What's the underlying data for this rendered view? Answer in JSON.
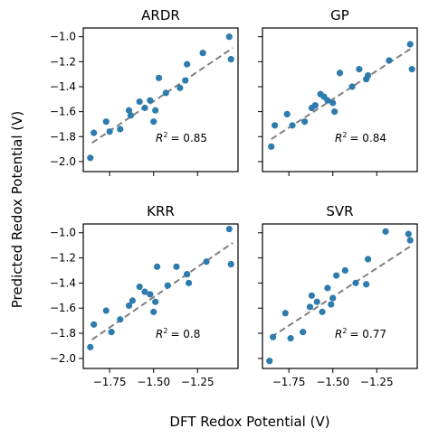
{
  "figure": {
    "xlabel": "DFT Redox Potential (V)",
    "ylabel": "Predicted Redox Potential (V)"
  },
  "chart_data": [
    {
      "type": "scatter",
      "title": "ARDR",
      "r2_label": "= 0.85",
      "fit": {
        "x": [
          -1.85,
          -1.05
        ],
        "y": [
          -1.85,
          -1.09
        ]
      },
      "x": [
        -1.86,
        -1.84,
        -1.77,
        -1.75,
        -1.69,
        -1.64,
        -1.63,
        -1.58,
        -1.55,
        -1.52,
        -1.5,
        -1.49,
        -1.47,
        -1.43,
        -1.35,
        -1.32,
        -1.31,
        -1.22,
        -1.07,
        -1.06
      ],
      "y": [
        -1.97,
        -1.77,
        -1.68,
        -1.76,
        -1.74,
        -1.59,
        -1.63,
        -1.52,
        -1.57,
        -1.51,
        -1.68,
        -1.59,
        -1.33,
        -1.45,
        -1.41,
        -1.35,
        -1.22,
        -1.13,
        -1.0,
        -1.18
      ]
    },
    {
      "type": "scatter",
      "title": "GP",
      "r2_label": "= 0.84",
      "fit": {
        "x": [
          -1.85,
          -1.05
        ],
        "y": [
          -1.82,
          -1.09
        ]
      },
      "x": [
        -1.85,
        -1.83,
        -1.76,
        -1.73,
        -1.66,
        -1.62,
        -1.6,
        -1.57,
        -1.55,
        -1.53,
        -1.5,
        -1.49,
        -1.46,
        -1.39,
        -1.35,
        -1.31,
        -1.3,
        -1.18,
        -1.06,
        -1.05
      ],
      "y": [
        -1.88,
        -1.71,
        -1.62,
        -1.71,
        -1.68,
        -1.57,
        -1.55,
        -1.46,
        -1.48,
        -1.51,
        -1.53,
        -1.6,
        -1.29,
        -1.4,
        -1.26,
        -1.34,
        -1.31,
        -1.19,
        -1.06,
        -1.26
      ]
    },
    {
      "type": "scatter",
      "title": "KRR",
      "r2_label": "= 0.8",
      "fit": {
        "x": [
          -1.85,
          -1.05
        ],
        "y": [
          -1.85,
          -1.08
        ]
      },
      "x": [
        -1.86,
        -1.84,
        -1.77,
        -1.74,
        -1.69,
        -1.64,
        -1.62,
        -1.58,
        -1.55,
        -1.52,
        -1.5,
        -1.49,
        -1.48,
        -1.42,
        -1.37,
        -1.31,
        -1.3,
        -1.2,
        -1.07,
        -1.06
      ],
      "y": [
        -1.91,
        -1.73,
        -1.62,
        -1.79,
        -1.69,
        -1.58,
        -1.54,
        -1.43,
        -1.47,
        -1.49,
        -1.63,
        -1.55,
        -1.27,
        -1.42,
        -1.27,
        -1.33,
        -1.4,
        -1.23,
        -0.97,
        -1.25
      ]
    },
    {
      "type": "scatter",
      "title": "SVR",
      "r2_label": "= 0.77",
      "fit": {
        "x": [
          -1.85,
          -1.05
        ],
        "y": [
          -1.83,
          -1.1
        ]
      },
      "x": [
        -1.86,
        -1.84,
        -1.77,
        -1.74,
        -1.67,
        -1.63,
        -1.62,
        -1.59,
        -1.56,
        -1.53,
        -1.51,
        -1.5,
        -1.48,
        -1.43,
        -1.37,
        -1.31,
        -1.3,
        -1.2,
        -1.07,
        -1.06
      ],
      "y": [
        -2.02,
        -1.83,
        -1.64,
        -1.84,
        -1.79,
        -1.59,
        -1.5,
        -1.55,
        -1.63,
        -1.44,
        -1.57,
        -1.52,
        -1.34,
        -1.3,
        -1.4,
        -1.41,
        -1.21,
        -0.99,
        -1.01,
        -1.06
      ]
    }
  ],
  "axes": {
    "xlim": [
      -1.9,
      -1.02
    ],
    "ylim": [
      -2.08,
      -0.93
    ],
    "xticks": [
      -1.75,
      -1.5,
      -1.25
    ],
    "xtick_labels": [
      "−1.75",
      "−1.50",
      "−1.25"
    ],
    "yticks": [
      -1.0,
      -1.2,
      -1.4,
      -1.6,
      -1.8,
      -2.0
    ],
    "ytick_labels": [
      "−1.0",
      "−1.2",
      "−1.4",
      "−1.6",
      "−1.8",
      "−2.0"
    ],
    "r2_symbol": "R",
    "r2_sup": "2"
  },
  "colors": {
    "point": "#2e7bad",
    "fit": "#808080"
  }
}
